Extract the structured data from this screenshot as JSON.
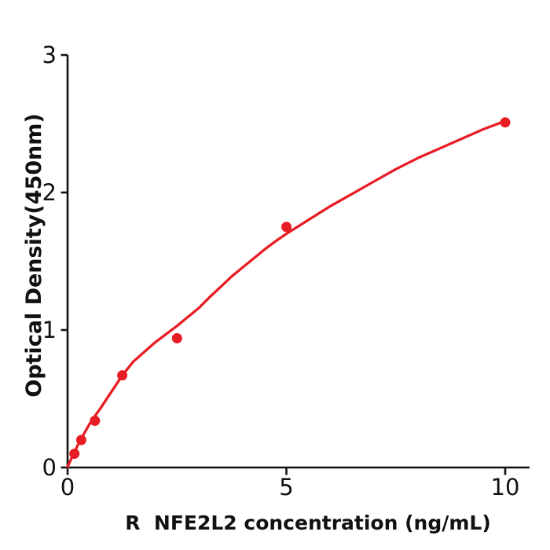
{
  "figure": {
    "background": "#ffffff"
  },
  "chart_data": {
    "type": "scatter",
    "title": "",
    "xlabel": "R  NFE2L2 concentration (ng/mL)",
    "ylabel": "Optical Density(450nm)",
    "x_tick_labels": [
      "0",
      "5",
      "10"
    ],
    "x_tick_values": [
      0,
      5,
      10
    ],
    "y_tick_labels": [
      "0",
      "1",
      "2",
      "3"
    ],
    "y_tick_values": [
      0,
      1,
      2,
      3
    ],
    "xlim": [
      0,
      10.55
    ],
    "ylim": [
      0,
      3
    ],
    "grid": false,
    "legend": false,
    "marker_color": "#e81c24",
    "line_color": "#e81c24",
    "axis_color": "#111111",
    "points": [
      {
        "x": 0.156,
        "y": 0.1
      },
      {
        "x": 0.3125,
        "y": 0.2
      },
      {
        "x": 0.625,
        "y": 0.34
      },
      {
        "x": 1.25,
        "y": 0.67
      },
      {
        "x": 2.5,
        "y": 0.94
      },
      {
        "x": 5,
        "y": 1.75
      },
      {
        "x": 10,
        "y": 2.51
      }
    ],
    "curve": [
      [
        0,
        0.005
      ],
      [
        0.05,
        0.04
      ],
      [
        0.1,
        0.075
      ],
      [
        0.156,
        0.11
      ],
      [
        0.22,
        0.155
      ],
      [
        0.3125,
        0.21
      ],
      [
        0.4,
        0.26
      ],
      [
        0.5,
        0.315
      ],
      [
        0.625,
        0.375
      ],
      [
        0.75,
        0.43
      ],
      [
        0.875,
        0.49
      ],
      [
        1.0,
        0.55
      ],
      [
        1.25,
        0.67
      ],
      [
        1.5,
        0.77
      ],
      [
        1.75,
        0.84
      ],
      [
        2.0,
        0.91
      ],
      [
        2.25,
        0.97
      ],
      [
        2.5,
        1.03
      ],
      [
        2.75,
        1.095
      ],
      [
        3.0,
        1.16
      ],
      [
        3.25,
        1.24
      ],
      [
        3.5,
        1.315
      ],
      [
        3.75,
        1.39
      ],
      [
        4.0,
        1.455
      ],
      [
        4.25,
        1.52
      ],
      [
        4.5,
        1.585
      ],
      [
        4.75,
        1.645
      ],
      [
        5.0,
        1.7
      ],
      [
        5.5,
        1.8
      ],
      [
        6.0,
        1.9
      ],
      [
        6.5,
        1.99
      ],
      [
        7.0,
        2.08
      ],
      [
        7.5,
        2.17
      ],
      [
        8.0,
        2.25
      ],
      [
        8.5,
        2.32
      ],
      [
        9.0,
        2.39
      ],
      [
        9.5,
        2.46
      ],
      [
        10.0,
        2.52
      ]
    ]
  }
}
